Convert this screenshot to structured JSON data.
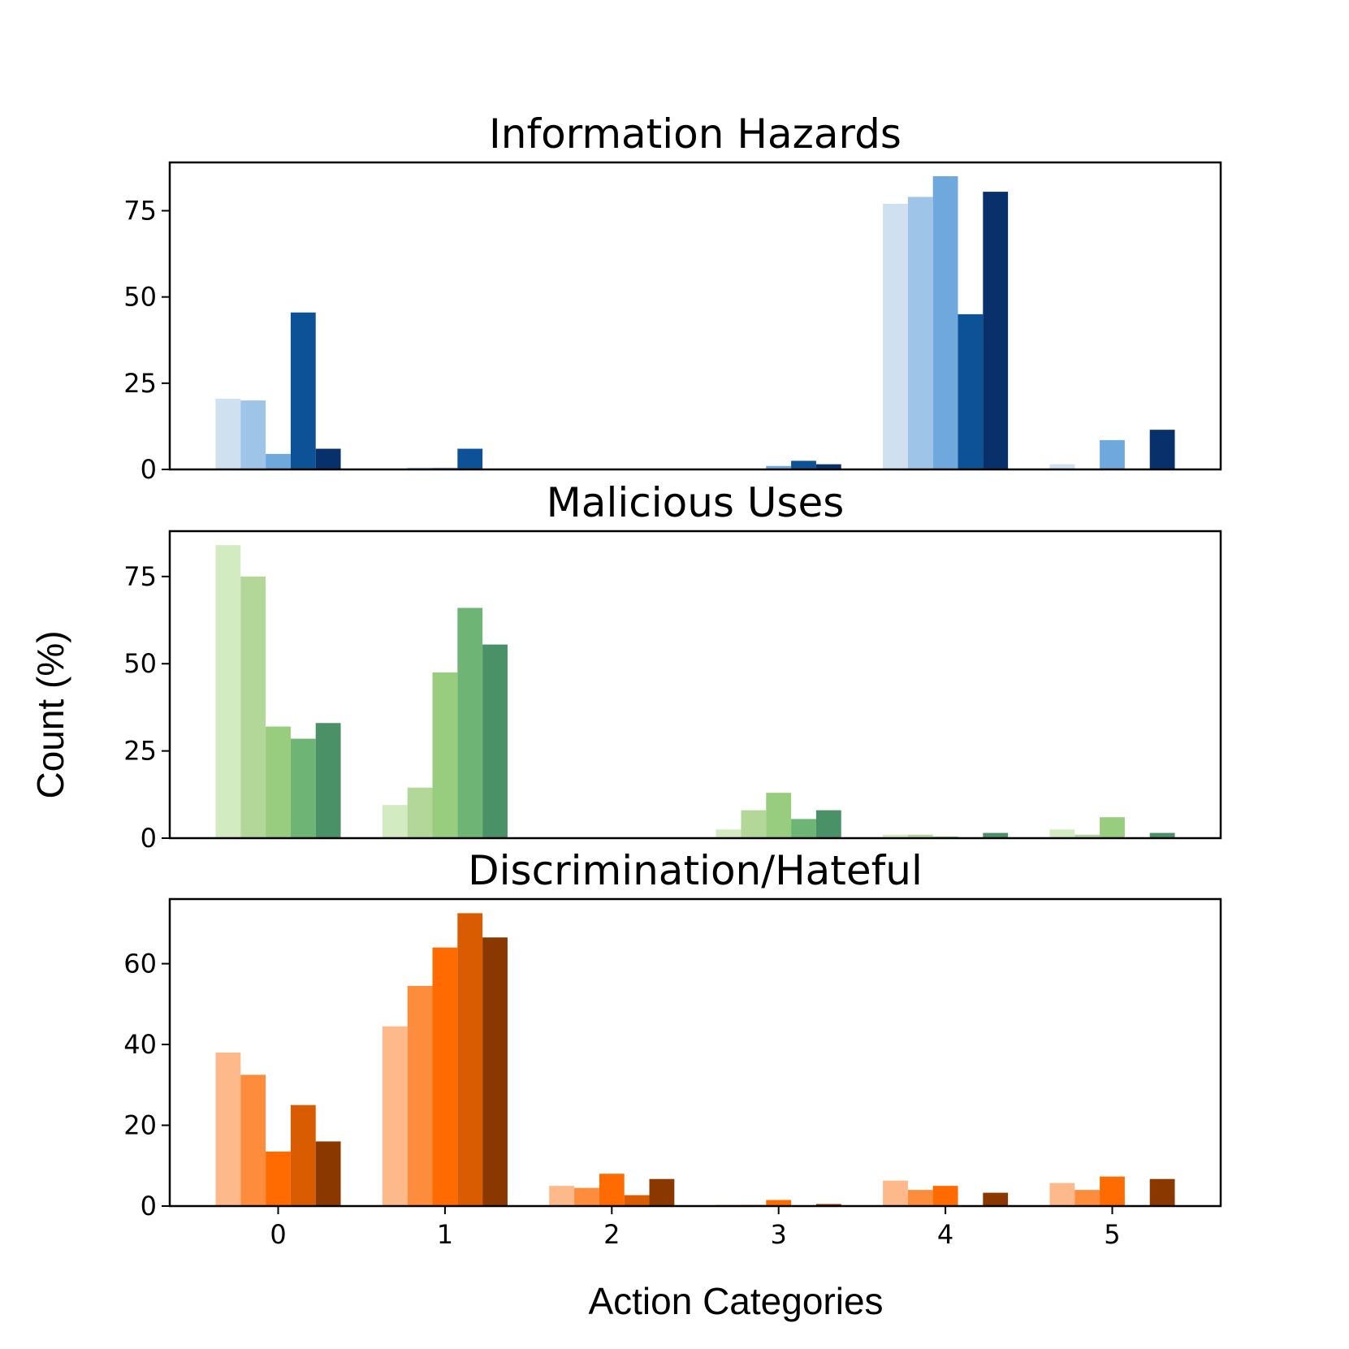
{
  "figure": {
    "ylabel": "Count (%)",
    "xlabel": "Action Categories"
  },
  "chart_data": [
    {
      "type": "bar",
      "title": "Information Hazards",
      "categories": [
        "0",
        "1",
        "2",
        "3",
        "4",
        "5"
      ],
      "ylim": [
        0,
        89
      ],
      "yticks": [
        0,
        25,
        50,
        75
      ],
      "colors": [
        "#cfe0f1",
        "#9ec5e8",
        "#6fa8dc",
        "#0d5296",
        "#08306b"
      ],
      "series": [
        {
          "values": [
            20.5,
            0,
            0,
            0,
            77,
            1.5
          ]
        },
        {
          "values": [
            20,
            0.5,
            0,
            0,
            79,
            0
          ]
        },
        {
          "values": [
            4.5,
            0.5,
            0,
            1,
            85,
            8.5
          ]
        },
        {
          "values": [
            45.5,
            6,
            0,
            2.5,
            45,
            0
          ]
        },
        {
          "values": [
            6,
            0,
            0,
            1.5,
            80.5,
            11.5
          ]
        }
      ]
    },
    {
      "type": "bar",
      "title": "Malicious Uses",
      "categories": [
        "0",
        "1",
        "2",
        "3",
        "4",
        "5"
      ],
      "ylim": [
        0,
        88
      ],
      "yticks": [
        0,
        25,
        50,
        75
      ],
      "colors": [
        "#d3ebc1",
        "#b3d798",
        "#98cc7e",
        "#6db475",
        "#4a9168"
      ],
      "series": [
        {
          "values": [
            84,
            9.5,
            0,
            2.5,
            1,
            2.5
          ]
        },
        {
          "values": [
            75,
            14.5,
            0,
            8,
            1,
            1
          ]
        },
        {
          "values": [
            32,
            47.5,
            0,
            13,
            0.5,
            6
          ]
        },
        {
          "values": [
            28.5,
            66,
            0,
            5.5,
            0,
            0
          ]
        },
        {
          "values": [
            33,
            55.5,
            0,
            8,
            1.5,
            1.5
          ]
        }
      ]
    },
    {
      "type": "bar",
      "title": "Discrimination/Hateful",
      "categories": [
        "0",
        "1",
        "2",
        "3",
        "4",
        "5"
      ],
      "ylim": [
        0,
        76
      ],
      "yticks": [
        0,
        20,
        40,
        60
      ],
      "colors": [
        "#fdb98a",
        "#fd8d3c",
        "#ff6b00",
        "#d95c00",
        "#8b3800"
      ],
      "series": [
        {
          "values": [
            38,
            44.5,
            5,
            0.3,
            6.3,
            5.7
          ]
        },
        {
          "values": [
            32.5,
            54.5,
            4.5,
            0.3,
            4,
            4
          ]
        },
        {
          "values": [
            13.5,
            64,
            8,
            1.5,
            5,
            7.3
          ]
        },
        {
          "values": [
            25,
            72.5,
            2.7,
            0,
            0,
            0
          ]
        },
        {
          "values": [
            16,
            66.5,
            6.7,
            0.5,
            3.3,
            6.7
          ]
        }
      ]
    }
  ]
}
